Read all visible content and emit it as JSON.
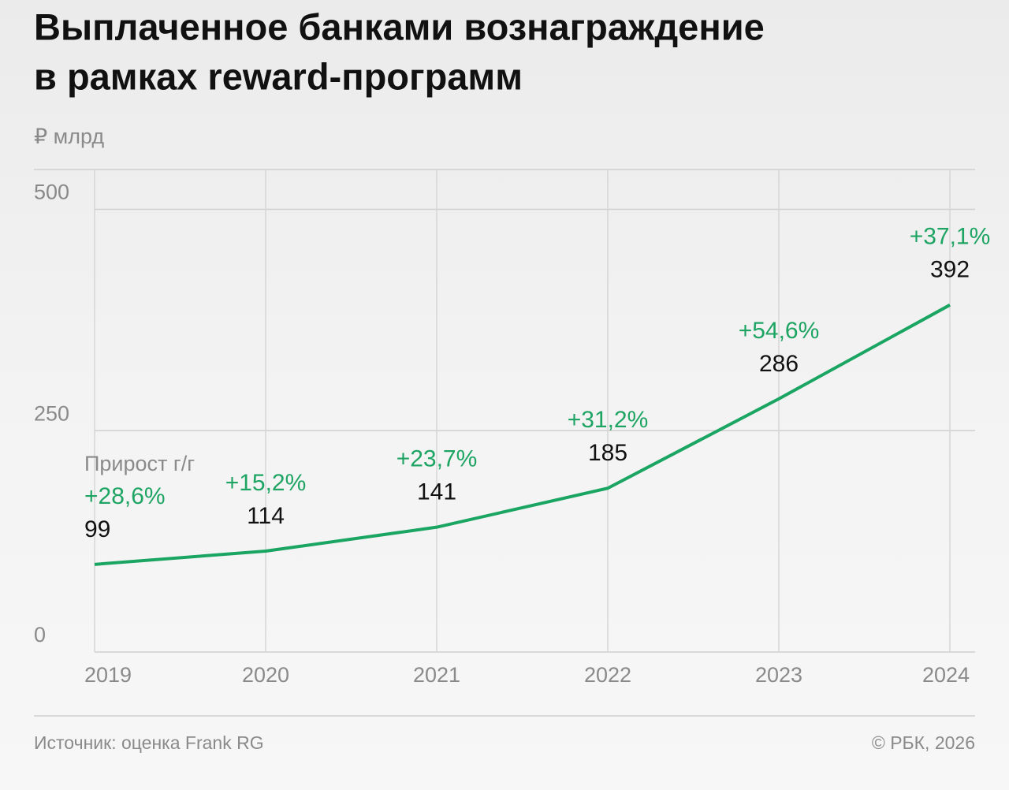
{
  "chart_data": {
    "type": "line",
    "title": [
      "Выплаченное банками вознаграждение",
      "в рамках reward-программ"
    ],
    "unit": "₽ млрд",
    "categories": [
      "2019",
      "2020",
      "2021",
      "2022",
      "2023",
      "2024"
    ],
    "values": [
      99,
      114,
      141,
      185,
      286,
      392
    ],
    "color": "#1aa562",
    "annotation_title": "Прирост г/г",
    "annotations": [
      "+28,6%",
      "+15,2%",
      "+23,7%",
      "+31,2%",
      "+54,6%",
      "+37,1%"
    ],
    "ylim": [
      0,
      545
    ],
    "yticks": [
      0,
      250,
      500
    ],
    "grid": true,
    "source": "Источник: оценка Frank RG",
    "credit": "© РБК, 2026"
  }
}
